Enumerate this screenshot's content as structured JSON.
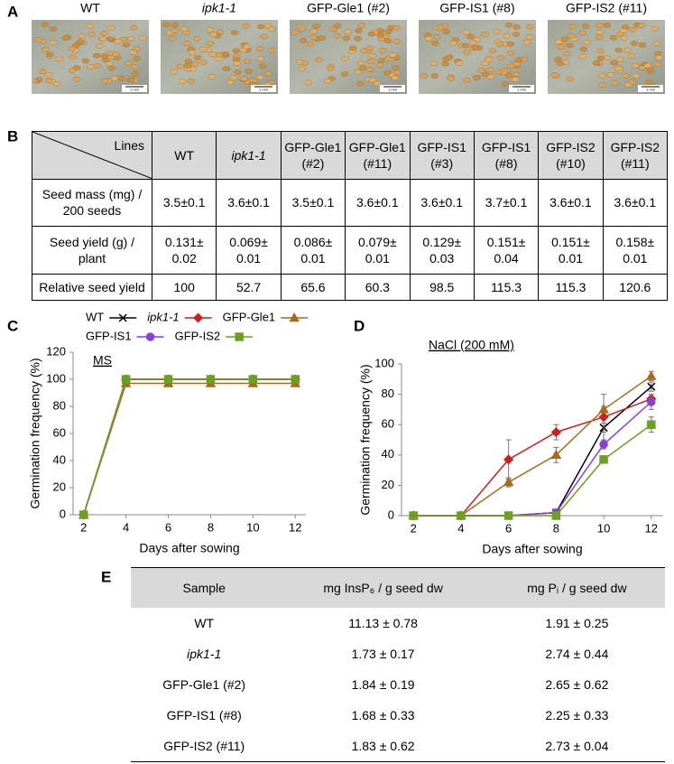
{
  "panel_labels": [
    "A",
    "B",
    "C",
    "D",
    "E"
  ],
  "panel_a": {
    "samples": [
      "WT",
      "ipk1-1",
      "GFP-Gle1 (#2)",
      "GFP-IS1 (#8)",
      "GFP-IS2 (#11)"
    ],
    "scale_bar": "1 mm"
  },
  "table_b": {
    "corner": "Lines",
    "columns": [
      "WT",
      "ipk1-1",
      "GFP-Gle1 (#2)",
      "GFP-Gle1 (#11)",
      "GFP-IS1 (#3)",
      "GFP-IS1 (#8)",
      "GFP-IS2 (#10)",
      "GFP-IS2 (#11)"
    ],
    "rows": [
      {
        "label": "Seed mass (mg) / 200 seeds",
        "cells": [
          "3.5±0.1",
          "3.6±0.1",
          "3.5±0.1",
          "3.6±0.1",
          "3.6±0.1",
          "3.7±0.1",
          "3.6±0.1",
          "3.6±0.1"
        ]
      },
      {
        "label": "Seed yield (g) / plant",
        "cells": [
          "0.131± 0.02",
          "0.069± 0.01",
          "0.086± 0.01",
          "0.079± 0.01",
          "0.129± 0.03",
          "0.151± 0.04",
          "0.151± 0.01",
          "0.158± 0.01"
        ]
      },
      {
        "label": "Relative seed yield",
        "cells": [
          "100",
          "52.7",
          "65.6",
          "60.3",
          "98.5",
          "115.3",
          "115.3",
          "120.6"
        ]
      }
    ]
  },
  "chart_data": [
    {
      "type": "line",
      "annotation": "MS",
      "y_label": "Germination frequency (%)",
      "x_label": "Days after sowing",
      "x": [
        2,
        4,
        6,
        8,
        10,
        12
      ],
      "xlim": [
        1.5,
        12.5
      ],
      "xticks": [
        2,
        4,
        6,
        8,
        10,
        12
      ],
      "ylim": [
        0,
        120
      ],
      "yticks": [
        0,
        20,
        40,
        60,
        80,
        100,
        120
      ],
      "legend": "top",
      "series": [
        {
          "name": "WT",
          "color": "#000000",
          "marker": "x",
          "values": [
            0,
            100,
            100,
            100,
            100,
            100
          ]
        },
        {
          "name": "ipk1-1",
          "color": "#cc1f1f",
          "marker": "diamond",
          "values": [
            0,
            100,
            100,
            100,
            100,
            100
          ]
        },
        {
          "name": "GFP-Gle1",
          "color": "#a86b1c",
          "marker": "triangle",
          "values": [
            0,
            97,
            97,
            97,
            97,
            97
          ]
        },
        {
          "name": "GFP-IS1",
          "color": "#8a3fd6",
          "marker": "circle",
          "values": [
            0,
            100,
            100,
            100,
            100,
            100
          ]
        },
        {
          "name": "GFP-IS2",
          "color": "#6aa121",
          "marker": "square",
          "values": [
            0,
            100,
            100,
            100,
            100,
            100
          ]
        }
      ]
    },
    {
      "type": "line",
      "annotation": "NaCl (200 mM)",
      "y_label": "Germination frequency (%)",
      "x_label": "Days after sowing",
      "x": [
        2,
        4,
        6,
        8,
        10,
        12
      ],
      "xlim": [
        1.5,
        12.5
      ],
      "xticks": [
        2,
        4,
        6,
        8,
        10,
        12
      ],
      "ylim": [
        0,
        100
      ],
      "yticks": [
        0,
        20,
        40,
        60,
        80,
        100
      ],
      "series": [
        {
          "name": "WT",
          "color": "#000000",
          "marker": "x",
          "values": [
            0,
            0,
            0,
            2,
            58,
            85
          ],
          "errors": [
            0,
            0,
            0,
            0,
            3,
            3
          ]
        },
        {
          "name": "ipk1-1",
          "color": "#cc1f1f",
          "marker": "diamond",
          "values": [
            0,
            0,
            37,
            55,
            65,
            77
          ],
          "errors": [
            0,
            0,
            13,
            5,
            15,
            3
          ]
        },
        {
          "name": "GFP-Gle1",
          "color": "#a86b1c",
          "marker": "triangle",
          "values": [
            0,
            0,
            22,
            40,
            70,
            92
          ],
          "errors": [
            0,
            0,
            3,
            5,
            2,
            3
          ]
        },
        {
          "name": "GFP-IS1",
          "color": "#8a3fd6",
          "marker": "circle",
          "values": [
            0,
            0,
            0,
            2,
            47,
            75
          ],
          "errors": [
            0,
            0,
            0,
            0,
            3,
            5
          ]
        },
        {
          "name": "GFP-IS2",
          "color": "#6aa121",
          "marker": "square",
          "values": [
            0,
            0,
            0,
            0,
            37,
            60
          ],
          "errors": [
            0,
            0,
            0,
            0,
            2,
            5
          ]
        }
      ]
    }
  ],
  "table_e": {
    "header": [
      "Sample",
      "mg InsP₆ / g seed dw",
      "mg Pᵢ / g seed dw"
    ],
    "rows": [
      [
        "WT",
        "11.13 ± 0.78",
        "1.91 ± 0.25"
      ],
      [
        "ipk1-1",
        "1.73 ± 0.17",
        "2.74 ± 0.44"
      ],
      [
        "GFP-Gle1 (#2)",
        "1.84 ± 0.19",
        "2.65 ± 0.62"
      ],
      [
        "GFP-IS1 (#8)",
        "1.68 ± 0.33",
        "2.25 ± 0.33"
      ],
      [
        "GFP-IS2 (#11)",
        "1.83 ± 0.62",
        "2.73 ± 0.04"
      ]
    ]
  }
}
